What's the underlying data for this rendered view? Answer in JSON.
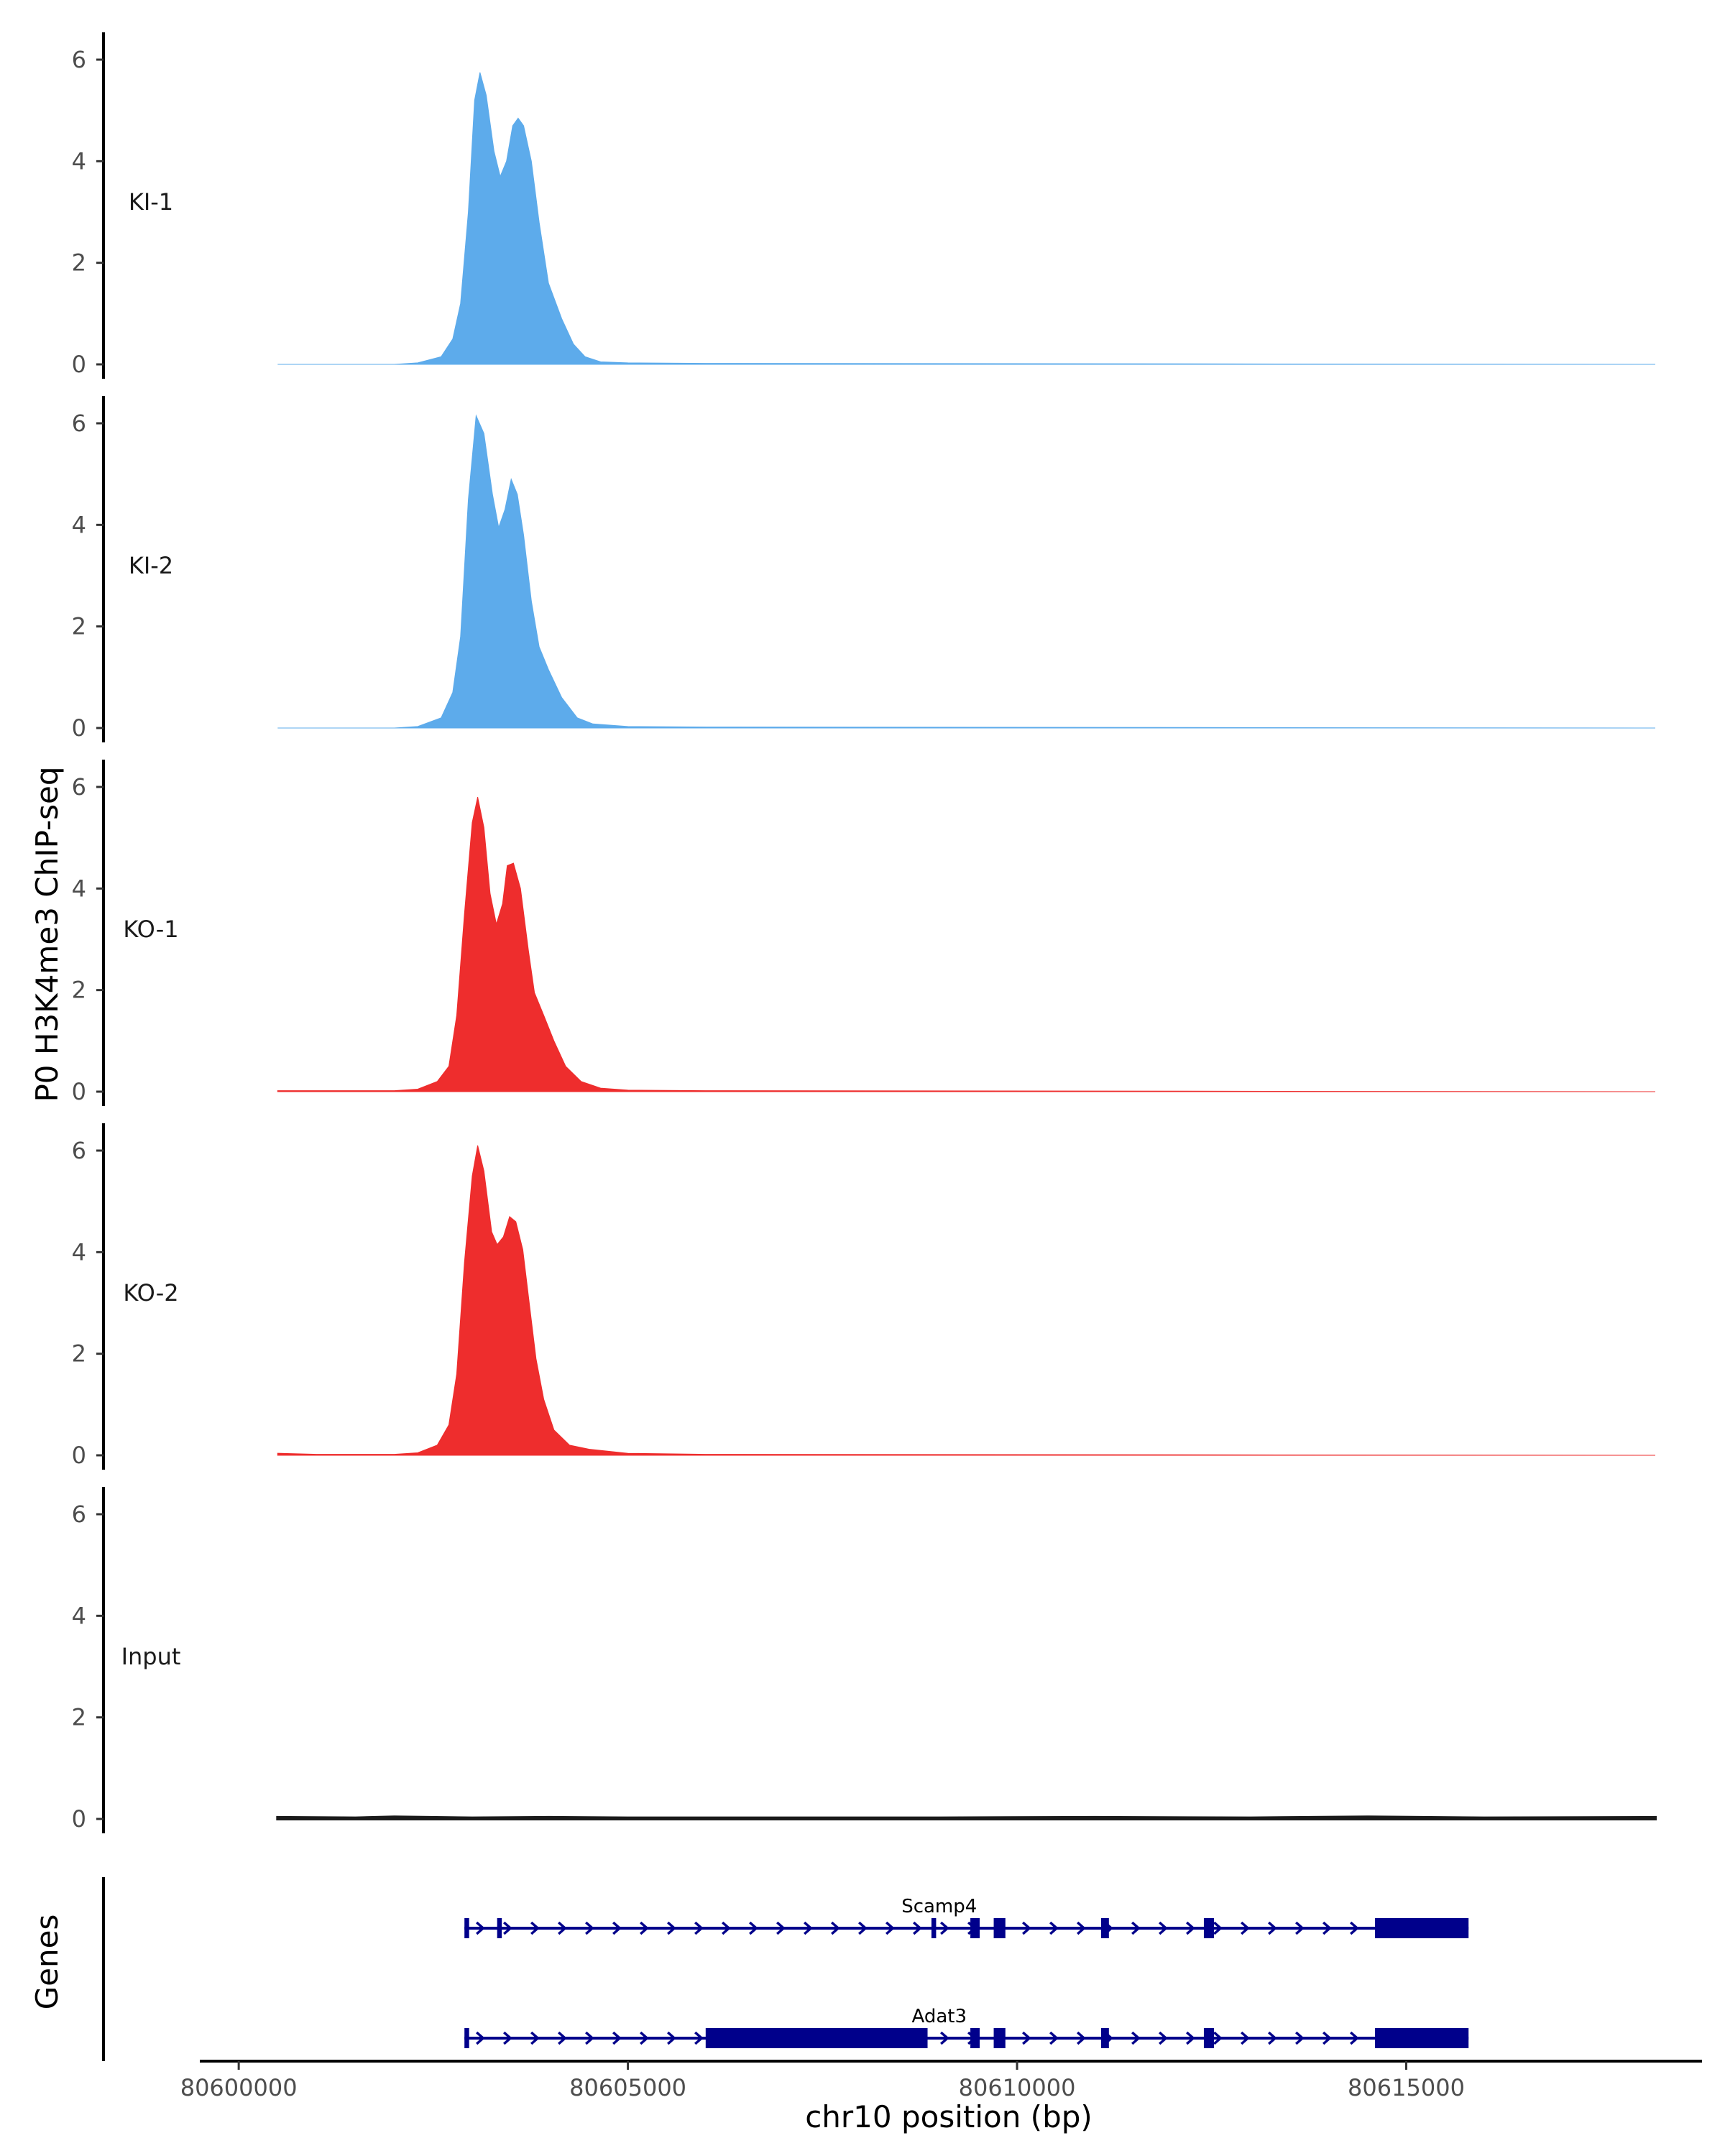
{
  "chart_data": {
    "type": "area",
    "title": "",
    "ylabel": "P0 H3K4me3 ChIP-seq",
    "xlabel": "chr10 position (bp)",
    "genes_label": "Genes",
    "xlim": [
      80599500,
      80618800
    ],
    "ylim": [
      0,
      6.5
    ],
    "yticks": [
      0,
      2,
      4,
      6
    ],
    "xticks": [
      80600000,
      80605000,
      80610000,
      80615000
    ],
    "xtick_labels": [
      "80600000",
      "80605000",
      "80610000",
      "80615000"
    ],
    "signal_range": [
      80600500,
      80618200
    ],
    "tracks": [
      {
        "name": "KI-1",
        "color": "#5dabeb",
        "points": [
          [
            80600500,
            0
          ],
          [
            80602000,
            0
          ],
          [
            80602300,
            0.03
          ],
          [
            80602600,
            0.15
          ],
          [
            80602750,
            0.5
          ],
          [
            80602850,
            1.2
          ],
          [
            80602950,
            3.0
          ],
          [
            80603030,
            5.2
          ],
          [
            80603100,
            5.75
          ],
          [
            80603180,
            5.3
          ],
          [
            80603280,
            4.2
          ],
          [
            80603360,
            3.7
          ],
          [
            80603440,
            4.0
          ],
          [
            80603520,
            4.7
          ],
          [
            80603590,
            4.85
          ],
          [
            80603660,
            4.7
          ],
          [
            80603760,
            4.0
          ],
          [
            80603860,
            2.8
          ],
          [
            80603980,
            1.6
          ],
          [
            80604150,
            0.9
          ],
          [
            80604300,
            0.4
          ],
          [
            80604450,
            0.15
          ],
          [
            80604650,
            0.05
          ],
          [
            80605000,
            0.03
          ],
          [
            80606000,
            0.02
          ],
          [
            80618200,
            0
          ]
        ]
      },
      {
        "name": "KI-2",
        "color": "#5dabeb",
        "points": [
          [
            80600500,
            0
          ],
          [
            80602000,
            0
          ],
          [
            80602300,
            0.03
          ],
          [
            80602600,
            0.2
          ],
          [
            80602750,
            0.7
          ],
          [
            80602850,
            1.8
          ],
          [
            80602950,
            4.5
          ],
          [
            80603050,
            6.15
          ],
          [
            80603150,
            5.8
          ],
          [
            80603260,
            4.6
          ],
          [
            80603340,
            3.95
          ],
          [
            80603420,
            4.3
          ],
          [
            80603500,
            4.9
          ],
          [
            80603580,
            4.6
          ],
          [
            80603660,
            3.8
          ],
          [
            80603760,
            2.5
          ],
          [
            80603860,
            1.6
          ],
          [
            80603980,
            1.15
          ],
          [
            80604150,
            0.6
          ],
          [
            80604350,
            0.2
          ],
          [
            80604550,
            0.08
          ],
          [
            80605000,
            0.03
          ],
          [
            80606000,
            0.02
          ],
          [
            80618200,
            0
          ]
        ]
      },
      {
        "name": "KO-1",
        "color": "#ee2d2d",
        "points": [
          [
            80600500,
            0.02
          ],
          [
            80602000,
            0.02
          ],
          [
            80602300,
            0.05
          ],
          [
            80602550,
            0.2
          ],
          [
            80602700,
            0.5
          ],
          [
            80602800,
            1.5
          ],
          [
            80602900,
            3.5
          ],
          [
            80603000,
            5.3
          ],
          [
            80603070,
            5.8
          ],
          [
            80603150,
            5.2
          ],
          [
            80603230,
            3.9
          ],
          [
            80603310,
            3.3
          ],
          [
            80603390,
            3.7
          ],
          [
            80603450,
            4.45
          ],
          [
            80603530,
            4.5
          ],
          [
            80603620,
            4.0
          ],
          [
            80603720,
            2.8
          ],
          [
            80603800,
            1.95
          ],
          [
            80603920,
            1.5
          ],
          [
            80604050,
            1.0
          ],
          [
            80604200,
            0.5
          ],
          [
            80604400,
            0.2
          ],
          [
            80604650,
            0.07
          ],
          [
            80605000,
            0.03
          ],
          [
            80606000,
            0.02
          ],
          [
            80618200,
            0
          ]
        ]
      },
      {
        "name": "KO-2",
        "color": "#ee2d2d",
        "points": [
          [
            80600500,
            0.04
          ],
          [
            80601000,
            0.02
          ],
          [
            80602000,
            0.02
          ],
          [
            80602300,
            0.05
          ],
          [
            80602550,
            0.2
          ],
          [
            80602700,
            0.6
          ],
          [
            80602800,
            1.6
          ],
          [
            80602900,
            3.8
          ],
          [
            80603000,
            5.5
          ],
          [
            80603070,
            6.1
          ],
          [
            80603150,
            5.6
          ],
          [
            80603250,
            4.4
          ],
          [
            80603320,
            4.15
          ],
          [
            80603400,
            4.3
          ],
          [
            80603480,
            4.7
          ],
          [
            80603560,
            4.6
          ],
          [
            80603650,
            4.05
          ],
          [
            80603740,
            2.9
          ],
          [
            80603820,
            1.9
          ],
          [
            80603920,
            1.1
          ],
          [
            80604050,
            0.5
          ],
          [
            80604250,
            0.2
          ],
          [
            80604500,
            0.12
          ],
          [
            80605000,
            0.04
          ],
          [
            80606000,
            0.02
          ],
          [
            80618200,
            0
          ]
        ]
      },
      {
        "name": "Input",
        "color": "#1a1a1a",
        "points": [
          [
            80600500,
            0.03
          ],
          [
            80601500,
            0.02
          ],
          [
            80602000,
            0.04
          ],
          [
            80603000,
            0.02
          ],
          [
            80604000,
            0.03
          ],
          [
            80605000,
            0.02
          ],
          [
            80607000,
            0.02
          ],
          [
            80609000,
            0.02
          ],
          [
            80611000,
            0.03
          ],
          [
            80613000,
            0.02
          ],
          [
            80614500,
            0.04
          ],
          [
            80616000,
            0.02
          ],
          [
            80618200,
            0.03
          ]
        ]
      }
    ],
    "genes": [
      {
        "name": "Scamp4",
        "color": "#00008b",
        "strand": "+",
        "start": 80602900,
        "end": 80615800,
        "exons": [
          [
            80602900,
            80602960
          ],
          [
            80603320,
            80603380
          ],
          [
            80608900,
            80608960
          ],
          [
            80609400,
            80609520
          ],
          [
            80609700,
            80609850
          ],
          [
            80611080,
            80611180
          ],
          [
            80612400,
            80612530
          ],
          [
            80614600,
            80615800
          ]
        ],
        "cds": [
          [
            80614600,
            80615800
          ]
        ]
      },
      {
        "name": "Adat3",
        "color": "#00008b",
        "strand": "+",
        "start": 80602900,
        "end": 80615800,
        "exons": [
          [
            80602900,
            80602960
          ],
          [
            80606000,
            80608850
          ],
          [
            80609400,
            80609520
          ],
          [
            80609700,
            80609850
          ],
          [
            80611080,
            80611180
          ],
          [
            80612400,
            80612530
          ],
          [
            80614600,
            80615800
          ]
        ],
        "cds": [
          [
            80606000,
            80608850
          ],
          [
            80614600,
            80615800
          ]
        ]
      }
    ]
  }
}
